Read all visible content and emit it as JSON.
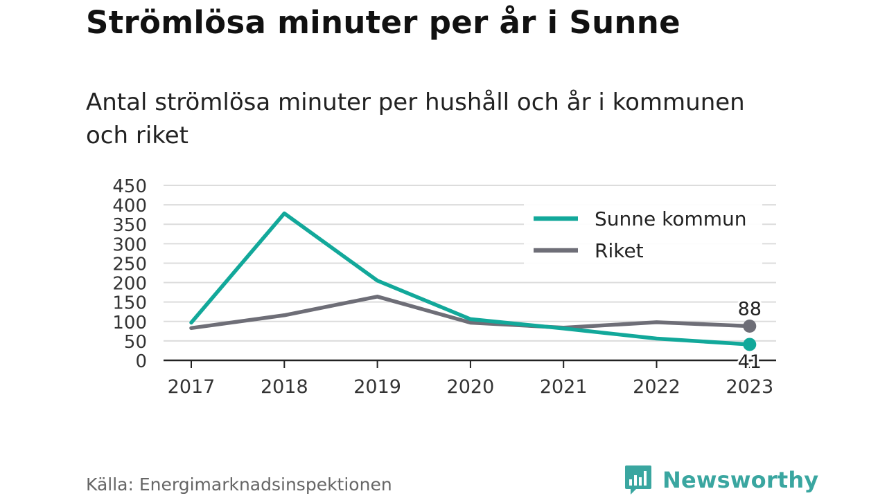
{
  "header": {
    "title": "Strömlösa minuter per år i Sunne",
    "subtitle": "Antal strömlösa minuter per hushåll och år i kommunen och riket"
  },
  "footer": {
    "source": "Källa: Energimarknadsinspektionen",
    "brand": "Newsworthy",
    "brand_color": "#3aa6a0",
    "logo_icon": "bar-chart-speech-bubble-icon"
  },
  "chart_data": {
    "type": "line",
    "title": "Strömlösa minuter per år i Sunne",
    "subtitle": "Antal strömlösa minuter per hushåll och år i kommunen och riket",
    "xlabel": "",
    "ylabel": "",
    "x": [
      "2017",
      "2018",
      "2019",
      "2020",
      "2021",
      "2022",
      "2023"
    ],
    "ylim": [
      0,
      450
    ],
    "yticks": [
      "0",
      "50",
      "100",
      "150",
      "200",
      "250",
      "300",
      "350",
      "400",
      "450"
    ],
    "grid": true,
    "legend_position": "top-right",
    "series": [
      {
        "name": "Sunne kommun",
        "color": "#12a89a",
        "values": [
          97,
          378,
          205,
          106,
          82,
          56,
          41
        ],
        "end_label": "41"
      },
      {
        "name": "Riket",
        "color": "#6e6e77",
        "values": [
          83,
          116,
          164,
          97,
          84,
          98,
          88
        ],
        "end_label": "88"
      }
    ]
  }
}
